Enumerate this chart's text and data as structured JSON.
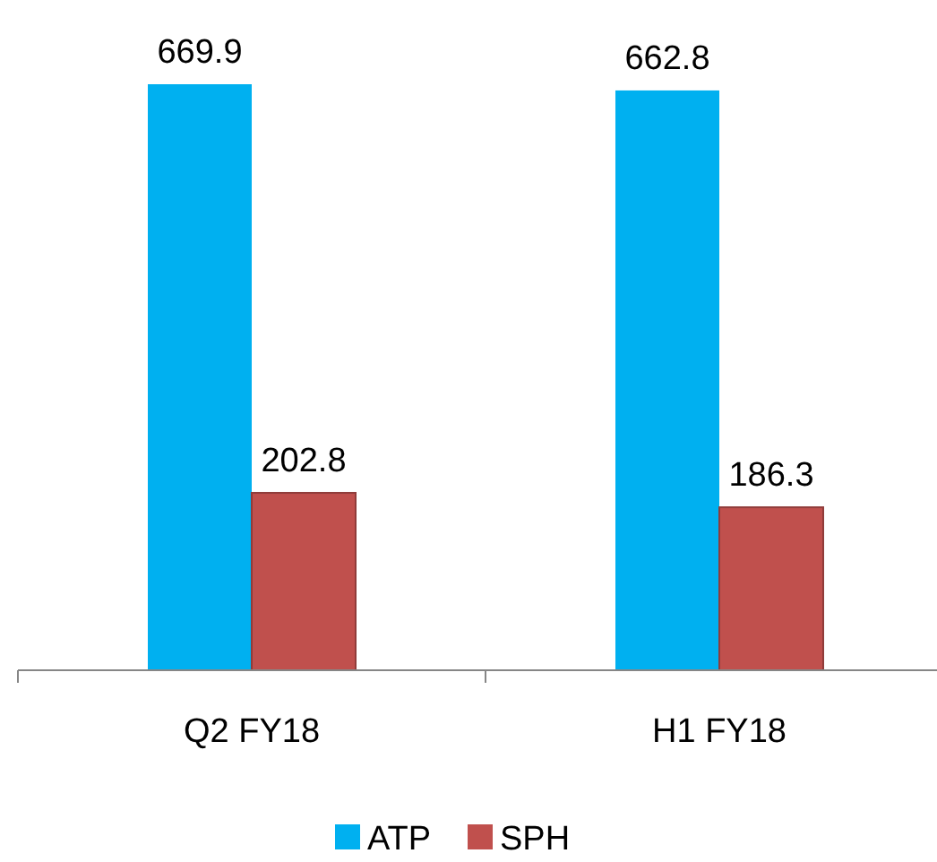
{
  "chart_data": {
    "type": "bar",
    "categories": [
      "Q2 FY18",
      "H1 FY18"
    ],
    "series": [
      {
        "name": "ATP",
        "color": "#00b0f0",
        "values": [
          669.9,
          662.8
        ]
      },
      {
        "name": "SPH",
        "color": "#c0504d",
        "values": [
          202.8,
          186.3
        ]
      }
    ],
    "data_labels": true,
    "legend": "bottom",
    "grid": false
  }
}
